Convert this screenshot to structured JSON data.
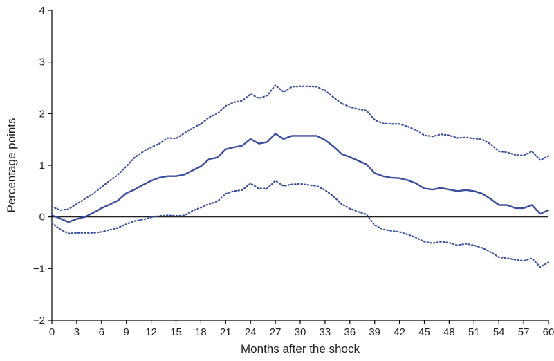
{
  "chart_data": {
    "type": "line",
    "title": "",
    "xlabel": "Months after the shock",
    "ylabel": "Percentage points",
    "xlim": [
      0,
      60
    ],
    "ylim": [
      -2,
      4
    ],
    "x_ticks": [
      0,
      3,
      6,
      9,
      12,
      15,
      18,
      21,
      24,
      27,
      30,
      33,
      36,
      39,
      42,
      45,
      48,
      51,
      54,
      57,
      60
    ],
    "y_ticks": [
      -2,
      -1,
      0,
      1,
      2,
      3,
      4
    ],
    "y_tick_labels": [
      "−2",
      "−1",
      "0",
      "1",
      "2",
      "3",
      "4"
    ],
    "reference_line": 0,
    "grid": false,
    "legend": "none",
    "colors": {
      "series": "#3a4f9c",
      "axis": "#000000"
    },
    "x": [
      0,
      1,
      2,
      3,
      4,
      5,
      6,
      7,
      8,
      9,
      10,
      11,
      12,
      13,
      14,
      15,
      16,
      17,
      18,
      19,
      20,
      21,
      22,
      23,
      24,
      25,
      26,
      27,
      28,
      29,
      30,
      31,
      32,
      33,
      34,
      35,
      36,
      37,
      38,
      39,
      40,
      41,
      42,
      43,
      44,
      45,
      46,
      47,
      48,
      49,
      50,
      51,
      52,
      53,
      54,
      55,
      56,
      57,
      58,
      59,
      60
    ],
    "series": [
      {
        "role": "estimate",
        "style": "solid",
        "values": [
          0.03,
          -0.03,
          -0.1,
          -0.04,
          0.0,
          0.08,
          0.17,
          0.24,
          0.32,
          0.46,
          0.53,
          0.62,
          0.7,
          0.76,
          0.79,
          0.79,
          0.82,
          0.9,
          0.98,
          1.12,
          1.15,
          1.31,
          1.35,
          1.38,
          1.51,
          1.42,
          1.45,
          1.61,
          1.51,
          1.57,
          1.57,
          1.57,
          1.57,
          1.49,
          1.37,
          1.22,
          1.16,
          1.09,
          1.02,
          0.85,
          0.79,
          0.76,
          0.75,
          0.71,
          0.65,
          0.55,
          0.53,
          0.56,
          0.53,
          0.5,
          0.52,
          0.5,
          0.45,
          0.35,
          0.23,
          0.23,
          0.17,
          0.17,
          0.23,
          0.06,
          0.13
        ]
      },
      {
        "role": "upper-band",
        "style": "dotted",
        "values": [
          0.2,
          0.13,
          0.15,
          0.25,
          0.35,
          0.45,
          0.58,
          0.7,
          0.82,
          0.98,
          1.15,
          1.26,
          1.35,
          1.42,
          1.53,
          1.52,
          1.62,
          1.72,
          1.8,
          1.93,
          2.0,
          2.15,
          2.22,
          2.25,
          2.38,
          2.3,
          2.35,
          2.55,
          2.42,
          2.52,
          2.53,
          2.53,
          2.52,
          2.45,
          2.32,
          2.2,
          2.13,
          2.09,
          2.06,
          1.88,
          1.81,
          1.8,
          1.8,
          1.75,
          1.68,
          1.58,
          1.56,
          1.6,
          1.58,
          1.53,
          1.54,
          1.52,
          1.5,
          1.41,
          1.27,
          1.25,
          1.2,
          1.19,
          1.27,
          1.1,
          1.18
        ]
      },
      {
        "role": "lower-band",
        "style": "dotted",
        "values": [
          -0.12,
          -0.24,
          -0.32,
          -0.31,
          -0.31,
          -0.31,
          -0.29,
          -0.25,
          -0.21,
          -0.14,
          -0.08,
          -0.05,
          -0.01,
          0.02,
          0.03,
          0.02,
          0.03,
          0.12,
          0.18,
          0.25,
          0.3,
          0.45,
          0.5,
          0.52,
          0.65,
          0.55,
          0.55,
          0.7,
          0.6,
          0.63,
          0.64,
          0.62,
          0.6,
          0.52,
          0.4,
          0.25,
          0.16,
          0.1,
          0.05,
          -0.16,
          -0.24,
          -0.27,
          -0.29,
          -0.34,
          -0.4,
          -0.48,
          -0.51,
          -0.48,
          -0.5,
          -0.55,
          -0.52,
          -0.55,
          -0.6,
          -0.68,
          -0.78,
          -0.8,
          -0.83,
          -0.85,
          -0.8,
          -0.97,
          -0.88
        ]
      }
    ]
  }
}
